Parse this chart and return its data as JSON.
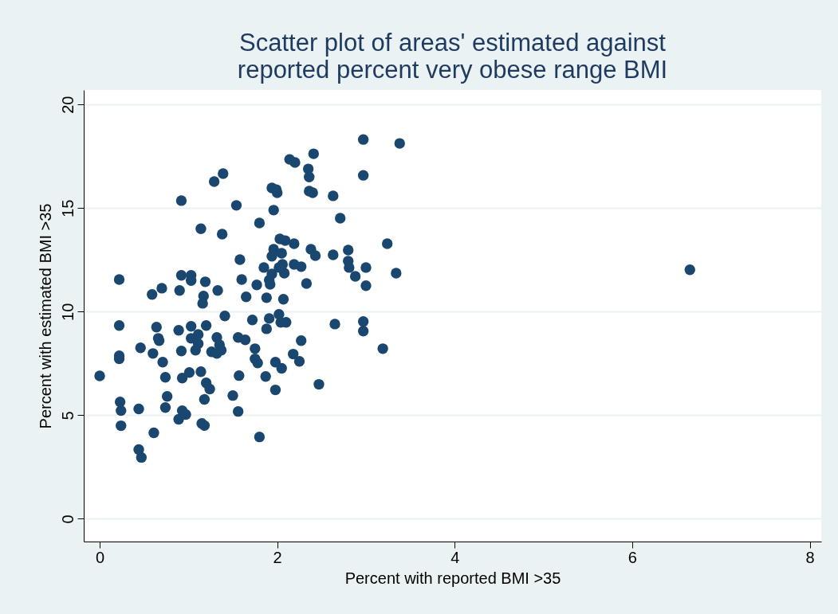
{
  "chart_data": {
    "type": "scatter",
    "title": "Scatter plot of areas' estimated against\nreported percent very obese range BMI",
    "xlabel": "Percent with reported BMI >35",
    "ylabel": "Percent with estimated BMI >35",
    "xlim": [
      -0.18,
      8.13
    ],
    "ylim": [
      -1.1,
      20.7
    ],
    "xticks": [
      0,
      2,
      4,
      6,
      8
    ],
    "yticks": [
      0,
      5,
      10,
      15,
      20
    ],
    "grid": "y",
    "marker": "circle",
    "series": [
      {
        "color": "#1a476f",
        "x": [
          0,
          0.22,
          0.22,
          0.22,
          0.22,
          0.23,
          0.24,
          0.24,
          0.46,
          0.44,
          0.44,
          0.47,
          0.59,
          0.7,
          0.64,
          0.66,
          0.67,
          0.71,
          0.6,
          0.74,
          0.76,
          0.74,
          0.61,
          0.92,
          0.92,
          0.9,
          0.89,
          0.92,
          0.93,
          0.93,
          0.89,
          0.97,
          1.01,
          1.03,
          1.03,
          1.03,
          1.03,
          1.11,
          1.11,
          1.08,
          1.17,
          1.14,
          1.14,
          1.15,
          1.18,
          1.16,
          1.19,
          1.2,
          1.2,
          1.24,
          1.18,
          1.26,
          1.32,
          1.37,
          1.32,
          1.35,
          1.29,
          1.39,
          1.38,
          1.33,
          1.41,
          1.5,
          1.54,
          1.58,
          1.6,
          1.56,
          1.57,
          1.56,
          1.64,
          1.65,
          1.72,
          1.75,
          1.75,
          1.78,
          1.8,
          1.8,
          1.77,
          1.85,
          1.88,
          1.87,
          1.91,
          1.88,
          1.94,
          1.91,
          1.92,
          1.94,
          1.96,
          1.94,
          1.96,
          2.0,
          1.99,
          1.98,
          1.98,
          2.03,
          2.02,
          2.04,
          2.05,
          2.07,
          2.08,
          2.06,
          2.02,
          2.09,
          2.1,
          2.05,
          2.14,
          2.18,
          2.19,
          2.19,
          2.2,
          2.25,
          2.27,
          2.27,
          2.33,
          2.35,
          2.36,
          2.36,
          2.38,
          2.4,
          2.41,
          2.43,
          2.47,
          2.63,
          2.71,
          2.63,
          2.65,
          2.8,
          2.8,
          2.81,
          2.88,
          2.97,
          2.97,
          2.97,
          2.97,
          3.0,
          3.0,
          3.19,
          3.24,
          3.34,
          3.38,
          6.65
        ],
        "values": [
          6.9,
          11.55,
          9.33,
          7.87,
          7.72,
          5.64,
          5.22,
          4.49,
          8.25,
          5.3,
          3.34,
          2.96,
          10.83,
          11.13,
          9.25,
          8.71,
          8.6,
          7.56,
          7.98,
          6.83,
          5.91,
          5.37,
          4.15,
          15.36,
          11.75,
          11.02,
          9.1,
          8.1,
          6.79,
          5.22,
          4.8,
          5.03,
          7.06,
          11.75,
          11.5,
          9.29,
          8.71,
          8.9,
          8.45,
          8.14,
          10.75,
          14.0,
          7.1,
          4.6,
          4.5,
          10.4,
          11.44,
          9.33,
          6.56,
          6.26,
          5.76,
          8.06,
          7.98,
          8.14,
          8.75,
          8.4,
          16.28,
          16.66,
          13.74,
          11.02,
          9.79,
          5.95,
          15.13,
          12.51,
          11.55,
          8.75,
          6.91,
          5.18,
          8.64,
          10.71,
          9.6,
          8.21,
          7.72,
          7.52,
          14.28,
          3.95,
          11.29,
          12.13,
          10.67,
          6.87,
          9.67,
          9.17,
          15.97,
          11.52,
          11.32,
          12.67,
          13.01,
          11.82,
          14.9,
          15.74,
          15.89,
          6.22,
          7.56,
          13.51,
          9.87,
          9.48,
          7.26,
          10.6,
          11.86,
          12.28,
          12.13,
          13.43,
          9.48,
          12.82,
          17.35,
          7.95,
          12.28,
          13.28,
          17.2,
          7.6,
          8.6,
          12.17,
          11.36,
          16.89,
          16.5,
          15.82,
          13.01,
          15.74,
          17.62,
          12.7,
          6.49,
          15.59,
          14.51,
          12.74,
          9.4,
          12.97,
          12.44,
          12.13,
          11.7,
          18.31,
          16.58,
          9.52,
          9.06,
          12.13,
          11.25,
          8.21,
          13.28,
          11.86,
          18.12,
          12.02
        ]
      }
    ]
  }
}
